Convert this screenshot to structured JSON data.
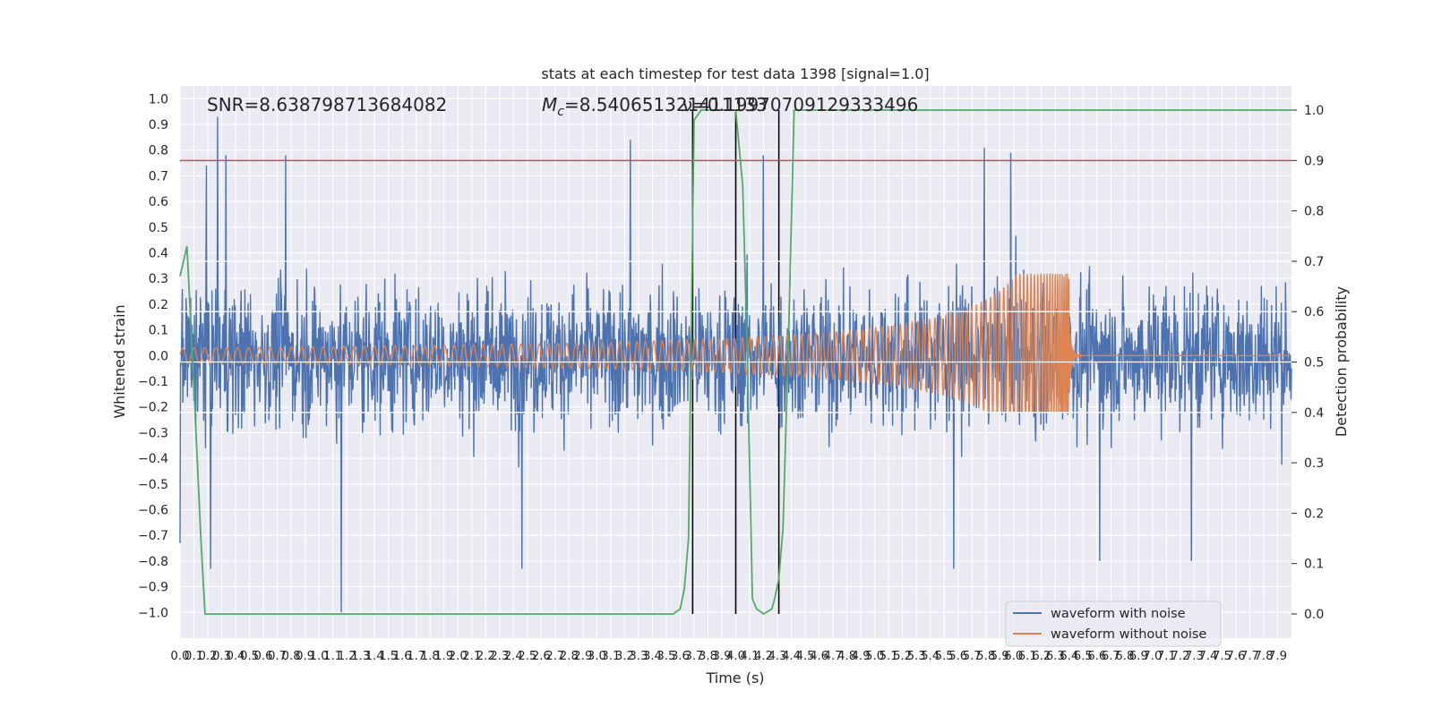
{
  "chart_data": {
    "type": "line",
    "title": "stats at each timestep for test data 1398 [signal=1.0]",
    "xlabel": "Time (s)",
    "ylabel": "Whitened strain",
    "y2label": "Detection probability",
    "xlim": [
      0,
      8
    ],
    "ylim": [
      -1.1,
      1.05
    ],
    "y2lim": [
      -0.048,
      1.048
    ],
    "xticks": [
      0.0,
      0.1,
      0.2,
      0.3,
      0.4,
      0.5,
      0.6,
      0.7,
      0.8,
      0.9,
      1.0,
      1.1,
      1.2,
      1.3,
      1.4,
      1.5,
      1.6,
      1.7,
      1.8,
      1.9,
      2.0,
      2.1,
      2.2,
      2.3,
      2.4,
      2.5,
      2.6,
      2.7,
      2.8,
      2.9,
      3.0,
      3.1,
      3.2,
      3.3,
      3.4,
      3.5,
      3.6,
      3.7,
      3.8,
      3.9,
      4.0,
      4.1,
      4.2,
      4.3,
      4.4,
      4.5,
      4.6,
      4.7,
      4.8,
      4.9,
      5.0,
      5.1,
      5.2,
      5.3,
      5.4,
      5.5,
      5.6,
      5.7,
      5.8,
      5.9,
      6.0,
      6.1,
      6.2,
      6.3,
      6.4,
      6.5,
      6.6,
      6.7,
      6.8,
      6.9,
      7.0,
      7.1,
      7.2,
      7.3,
      7.4,
      7.5,
      7.6,
      7.7,
      7.8,
      7.9
    ],
    "yticks": [
      -1.0,
      -0.9,
      -0.8,
      -0.7,
      -0.6,
      -0.5,
      -0.4,
      -0.3,
      -0.2,
      -0.1,
      0.0,
      0.1,
      0.2,
      0.3,
      0.4,
      0.5,
      0.6,
      0.7,
      0.8,
      0.9,
      1.0
    ],
    "y2ticks": [
      0.0,
      0.1,
      0.2,
      0.3,
      0.4,
      0.5,
      0.6,
      0.7,
      0.8,
      0.9,
      1.0
    ],
    "annotations": [
      {
        "text": "SNR=8.638798713684082",
        "x": 0.18,
        "y": 0.94
      },
      {
        "text": "Mc=8.540651321411133",
        "x": 2.6,
        "y": 0.94
      },
      {
        "text": "ν=0.19970709129333496",
        "x": 3.6,
        "y": 0.94
      }
    ],
    "threshold_line": {
      "y2": 0.9,
      "color": "#c44e52"
    },
    "vlines_x": [
      3.69,
      4.0,
      4.31
    ],
    "series": [
      {
        "name": "waveform with noise",
        "color": "#4c72b0",
        "envelope": {
          "t_end": 8.0,
          "typical_amplitude": 0.35,
          "spikes": [
            {
              "t": 0.27,
              "v": 0.93
            },
            {
              "t": 0.33,
              "v": 0.78
            },
            {
              "t": 0.19,
              "v": 0.74
            },
            {
              "t": 0.76,
              "v": 0.78
            },
            {
              "t": 3.24,
              "v": 0.84
            },
            {
              "t": 5.79,
              "v": 0.81
            },
            {
              "t": 5.98,
              "v": 0.79
            },
            {
              "t": 4.2,
              "v": 0.78
            },
            {
              "t": 1.16,
              "v": -1.0
            },
            {
              "t": 0.22,
              "v": -0.83
            },
            {
              "t": 2.46,
              "v": -0.83
            },
            {
              "t": 5.57,
              "v": -0.83
            },
            {
              "t": 6.62,
              "v": -0.8
            },
            {
              "t": 7.28,
              "v": -0.8
            },
            {
              "t": 0.0,
              "v": -0.73
            }
          ]
        }
      },
      {
        "name": "waveform without noise",
        "color": "#dd8452",
        "chirp": {
          "t_merge": 6.4,
          "peak_amplitude": 0.32,
          "trough_amplitude": -0.22,
          "early_amplitude": 0.03
        }
      },
      {
        "name": "detection probability",
        "axis": "y2",
        "color": "#55a868",
        "x": [
          0.0,
          0.05,
          0.1,
          0.15,
          0.18,
          0.2,
          0.25,
          0.3,
          2.6,
          2.75,
          2.9,
          3.5,
          3.55,
          3.6,
          3.63,
          3.66,
          3.7,
          3.75,
          3.8,
          3.85,
          3.9,
          3.95,
          4.0,
          4.05,
          4.08,
          4.12,
          4.15,
          4.2,
          4.26,
          4.28,
          4.31,
          4.34,
          4.38,
          4.42,
          8.0
        ],
        "y": [
          0.67,
          0.73,
          0.45,
          0.15,
          0.0,
          0.0,
          0.0,
          0.0,
          0.0,
          0.0,
          0.0,
          0.0,
          0.0,
          0.01,
          0.05,
          0.15,
          0.98,
          1.0,
          1.0,
          1.0,
          1.0,
          1.0,
          1.0,
          0.85,
          0.55,
          0.03,
          0.01,
          0.0,
          0.01,
          0.03,
          0.07,
          0.17,
          0.55,
          1.0,
          1.0
        ]
      }
    ],
    "legend": {
      "location": "lower-right",
      "entries": [
        "waveform with noise",
        "waveform without noise"
      ]
    }
  }
}
